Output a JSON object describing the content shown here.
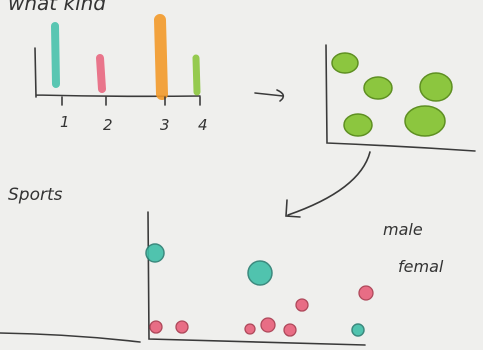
{
  "heading": "what kind",
  "bar_sketch": {
    "labels": [
      "1",
      "2",
      "3",
      "4"
    ]
  },
  "bottom_sketch": {
    "title": "Sports",
    "legend": [
      "male",
      "femal"
    ]
  }
}
